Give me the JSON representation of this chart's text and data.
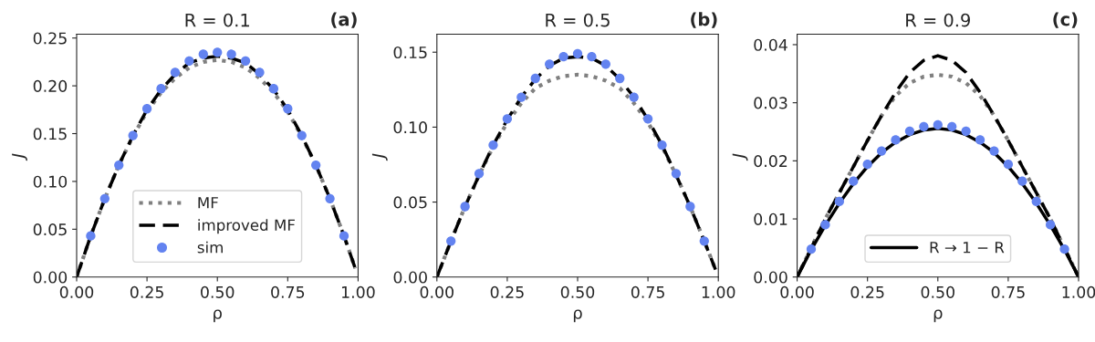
{
  "chart_data": [
    {
      "type": "line",
      "title": "R = 0.1",
      "xlabel": "ρ",
      "ylabel": "J",
      "annotations": [
        "(a)"
      ],
      "xlim": [
        0,
        1
      ],
      "ylim": [
        0,
        0.254
      ],
      "xticks": [
        {
          "value": 0,
          "label": "0.00"
        },
        {
          "value": 0.25,
          "label": "0.25"
        },
        {
          "value": 0.5,
          "label": "0.50"
        },
        {
          "value": 0.75,
          "label": "0.75"
        },
        {
          "value": 1,
          "label": "1.00"
        }
      ],
      "yticks": [
        {
          "value": 0,
          "label": "0.00"
        },
        {
          "value": 0.05,
          "label": "0.05"
        },
        {
          "value": 0.1,
          "label": "0.10"
        },
        {
          "value": 0.15,
          "label": "0.15"
        },
        {
          "value": 0.2,
          "label": "0.20"
        },
        {
          "value": 0.25,
          "label": "0.25"
        }
      ],
      "legend": "bottom",
      "grid": false,
      "series": [
        {
          "name": "MF",
          "line_style": "dotted",
          "color": "#808080",
          "x": [
            0,
            0.05,
            0.1,
            0.15,
            0.2,
            0.25,
            0.3,
            0.35,
            0.4,
            0.45,
            0.5,
            0.55,
            0.6,
            0.65,
            0.7,
            0.75,
            0.8,
            0.85,
            0.9,
            0.95,
            0.99
          ],
          "values": [
            0,
            0.043,
            0.082,
            0.117,
            0.147,
            0.173,
            0.193,
            0.208,
            0.219,
            0.225,
            0.227,
            0.225,
            0.219,
            0.208,
            0.193,
            0.173,
            0.147,
            0.117,
            0.082,
            0.043,
            0.009
          ]
        },
        {
          "name": "improved MF",
          "line_style": "dashed",
          "color": "#000000",
          "x": [
            0,
            0.05,
            0.1,
            0.15,
            0.2,
            0.25,
            0.3,
            0.35,
            0.4,
            0.45,
            0.5,
            0.55,
            0.6,
            0.65,
            0.7,
            0.75,
            0.8,
            0.85,
            0.9,
            0.95,
            0.99
          ],
          "values": [
            0,
            0.043,
            0.082,
            0.117,
            0.148,
            0.175,
            0.196,
            0.212,
            0.224,
            0.229,
            0.231,
            0.229,
            0.224,
            0.212,
            0.196,
            0.175,
            0.148,
            0.117,
            0.082,
            0.043,
            0.009
          ]
        },
        {
          "name": "sim",
          "type": "scatter",
          "marker": "circle",
          "color": "#6383f0",
          "x": [
            0.05,
            0.1,
            0.15,
            0.2,
            0.25,
            0.3,
            0.35,
            0.4,
            0.45,
            0.5,
            0.55,
            0.6,
            0.65,
            0.7,
            0.75,
            0.8,
            0.85,
            0.9,
            0.95
          ],
          "values": [
            0.043,
            0.082,
            0.117,
            0.148,
            0.176,
            0.197,
            0.214,
            0.226,
            0.233,
            0.235,
            0.233,
            0.226,
            0.214,
            0.197,
            0.176,
            0.148,
            0.117,
            0.082,
            0.043
          ]
        }
      ]
    },
    {
      "type": "line",
      "title": "R = 0.5",
      "xlabel": "ρ",
      "ylabel": "J",
      "annotations": [
        "(b)"
      ],
      "xlim": [
        0,
        1
      ],
      "ylim": [
        0,
        0.162
      ],
      "xticks": [
        {
          "value": 0,
          "label": "0.00"
        },
        {
          "value": 0.25,
          "label": "0.25"
        },
        {
          "value": 0.5,
          "label": "0.50"
        },
        {
          "value": 0.75,
          "label": "0.75"
        },
        {
          "value": 1,
          "label": "1.00"
        }
      ],
      "yticks": [
        {
          "value": 0,
          "label": "0.00"
        },
        {
          "value": 0.05,
          "label": "0.05"
        },
        {
          "value": 0.1,
          "label": "0.10"
        },
        {
          "value": 0.15,
          "label": "0.15"
        }
      ],
      "grid": false,
      "series": [
        {
          "line_style": "dotted",
          "color": "#808080",
          "x": [
            0,
            0.05,
            0.1,
            0.15,
            0.2,
            0.25,
            0.3,
            0.35,
            0.4,
            0.45,
            0.5,
            0.55,
            0.6,
            0.65,
            0.7,
            0.75,
            0.8,
            0.85,
            0.9,
            0.95,
            0.99
          ],
          "values": [
            0,
            0.024,
            0.047,
            0.068,
            0.087,
            0.103,
            0.116,
            0.126,
            0.131,
            0.134,
            0.135,
            0.134,
            0.131,
            0.126,
            0.116,
            0.103,
            0.087,
            0.068,
            0.047,
            0.024,
            0.005
          ]
        },
        {
          "line_style": "dashed",
          "color": "#000000",
          "x": [
            0,
            0.05,
            0.1,
            0.15,
            0.2,
            0.25,
            0.3,
            0.35,
            0.4,
            0.45,
            0.5,
            0.55,
            0.6,
            0.65,
            0.7,
            0.75,
            0.8,
            0.85,
            0.9,
            0.95,
            0.99
          ],
          "values": [
            0,
            0.024,
            0.047,
            0.068,
            0.088,
            0.105,
            0.12,
            0.132,
            0.141,
            0.146,
            0.147,
            0.146,
            0.141,
            0.132,
            0.12,
            0.105,
            0.088,
            0.068,
            0.047,
            0.024,
            0.005
          ]
        },
        {
          "type": "scatter",
          "marker": "circle",
          "color": "#6383f0",
          "x": [
            0.05,
            0.1,
            0.15,
            0.2,
            0.25,
            0.3,
            0.35,
            0.4,
            0.45,
            0.5,
            0.55,
            0.6,
            0.65,
            0.7,
            0.75,
            0.8,
            0.85,
            0.9,
            0.95
          ],
          "values": [
            0.024,
            0.047,
            0.069,
            0.088,
            0.1055,
            0.12,
            0.1325,
            0.142,
            0.147,
            0.149,
            0.147,
            0.142,
            0.1325,
            0.12,
            0.1055,
            0.088,
            0.069,
            0.047,
            0.024
          ]
        }
      ]
    },
    {
      "type": "line",
      "title": "R = 0.9",
      "xlabel": "ρ",
      "ylabel": "J",
      "annotations": [
        "(c)"
      ],
      "xlim": [
        0,
        1
      ],
      "ylim": [
        0,
        0.0418
      ],
      "xticks": [
        {
          "value": 0,
          "label": "0.00"
        },
        {
          "value": 0.25,
          "label": "0.25"
        },
        {
          "value": 0.5,
          "label": "0.50"
        },
        {
          "value": 0.75,
          "label": "0.75"
        },
        {
          "value": 1,
          "label": "1.00"
        }
      ],
      "yticks": [
        {
          "value": 0,
          "label": "0.00"
        },
        {
          "value": 0.01,
          "label": "0.01"
        },
        {
          "value": 0.02,
          "label": "0.02"
        },
        {
          "value": 0.03,
          "label": "0.03"
        },
        {
          "value": 0.04,
          "label": "0.04"
        }
      ],
      "legend": "bottom",
      "grid": false,
      "series": [
        {
          "line_style": "dotted",
          "color": "#808080",
          "x": [
            0,
            0.05,
            0.1,
            0.15,
            0.2,
            0.25,
            0.3,
            0.35,
            0.4,
            0.45,
            0.5,
            0.55,
            0.6,
            0.65,
            0.7,
            0.75,
            0.8,
            0.85,
            0.9,
            0.95,
            1
          ],
          "values": [
            0,
            0.005,
            0.01,
            0.0145,
            0.019,
            0.0235,
            0.0278,
            0.0312,
            0.0334,
            0.0345,
            0.0348,
            0.0345,
            0.0334,
            0.0312,
            0.0278,
            0.0235,
            0.019,
            0.0145,
            0.01,
            0.005,
            0
          ]
        },
        {
          "line_style": "dashed",
          "color": "#000000",
          "x": [
            0,
            0.05,
            0.1,
            0.15,
            0.2,
            0.25,
            0.3,
            0.35,
            0.4,
            0.45,
            0.5,
            0.55,
            0.6,
            0.65,
            0.7,
            0.75,
            0.8,
            0.85,
            0.9,
            0.95,
            1
          ],
          "values": [
            0,
            0.005,
            0.01,
            0.0145,
            0.019,
            0.0235,
            0.0278,
            0.0318,
            0.0352,
            0.0373,
            0.0381,
            0.0373,
            0.0352,
            0.0318,
            0.0278,
            0.0235,
            0.019,
            0.0145,
            0.01,
            0.005,
            0
          ]
        },
        {
          "name": "R → 1 − R",
          "line_style": "solid",
          "color": "#000000",
          "x": [
            0,
            0.05,
            0.1,
            0.15,
            0.2,
            0.25,
            0.3,
            0.35,
            0.4,
            0.45,
            0.5,
            0.55,
            0.6,
            0.65,
            0.7,
            0.75,
            0.8,
            0.85,
            0.9,
            0.95,
            1
          ],
          "values": [
            0,
            0.0047,
            0.0089,
            0.0127,
            0.0161,
            0.019,
            0.0214,
            0.0232,
            0.0245,
            0.0253,
            0.0256,
            0.0253,
            0.0245,
            0.0232,
            0.0214,
            0.019,
            0.0161,
            0.0127,
            0.0089,
            0.0047,
            0
          ]
        },
        {
          "type": "scatter",
          "marker": "circle",
          "color": "#6383f0",
          "x": [
            0.05,
            0.1,
            0.15,
            0.2,
            0.25,
            0.3,
            0.35,
            0.4,
            0.45,
            0.5,
            0.55,
            0.6,
            0.65,
            0.7,
            0.75,
            0.8,
            0.85,
            0.9,
            0.95
          ],
          "values": [
            0.0048,
            0.009,
            0.013,
            0.0165,
            0.0194,
            0.0217,
            0.0236,
            0.0251,
            0.0259,
            0.0262,
            0.0259,
            0.0251,
            0.0236,
            0.0217,
            0.0194,
            0.0165,
            0.013,
            0.009,
            0.0048
          ]
        }
      ]
    }
  ]
}
